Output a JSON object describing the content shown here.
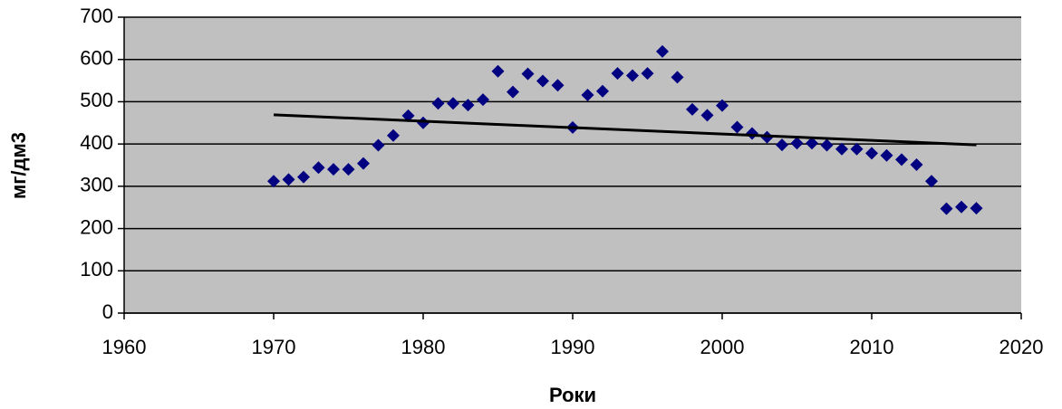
{
  "chart_data": {
    "type": "scatter",
    "xlabel": "Роки",
    "ylabel": "мг/дм3",
    "x": [
      1970,
      1971,
      1972,
      1973,
      1974,
      1975,
      1976,
      1977,
      1978,
      1979,
      1980,
      1981,
      1982,
      1983,
      1984,
      1985,
      1986,
      1987,
      1988,
      1989,
      1990,
      1991,
      1992,
      1993,
      1994,
      1995,
      1996,
      1997,
      1998,
      1999,
      2000,
      2001,
      2002,
      2003,
      2004,
      2005,
      2006,
      2007,
      2008,
      2009,
      2010,
      2011,
      2012,
      2013,
      2014,
      2015,
      2016,
      2017
    ],
    "values": [
      312,
      316,
      322,
      344,
      340,
      340,
      354,
      397,
      420,
      467,
      450,
      496,
      496,
      492,
      505,
      572,
      523,
      566,
      549,
      539,
      439,
      516,
      525,
      567,
      562,
      567,
      619,
      558,
      482,
      468,
      491,
      440,
      425,
      416,
      398,
      402,
      402,
      397,
      388,
      388,
      378,
      373,
      363,
      351,
      312,
      247,
      251,
      248
    ],
    "color": "#000080",
    "trendline": {
      "x": [
        1970,
        2017
      ],
      "values": [
        469,
        398
      ],
      "color": "#000000"
    },
    "xlim": [
      1960,
      2020
    ],
    "xticks": [
      1960,
      1970,
      1980,
      1990,
      2000,
      2010,
      2020
    ],
    "ylim": [
      0,
      700
    ],
    "yticks": [
      0,
      100,
      200,
      300,
      400,
      500,
      600,
      700
    ],
    "grid": true,
    "plot_background": "#c0c0c0"
  }
}
